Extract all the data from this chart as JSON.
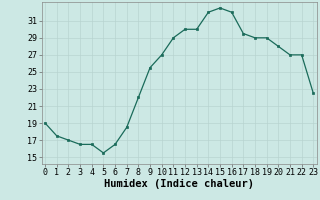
{
  "x": [
    0,
    1,
    2,
    3,
    4,
    5,
    6,
    7,
    8,
    9,
    10,
    11,
    12,
    13,
    14,
    15,
    16,
    17,
    18,
    19,
    20,
    21,
    22,
    23
  ],
  "y": [
    19.0,
    17.5,
    17.0,
    16.5,
    16.5,
    15.5,
    16.5,
    18.5,
    22.0,
    25.5,
    27.0,
    29.0,
    30.0,
    30.0,
    32.0,
    32.5,
    32.0,
    29.5,
    29.0,
    29.0,
    28.0,
    27.0,
    27.0,
    22.5
  ],
  "line_color": "#1a6b5a",
  "marker_color": "#1a6b5a",
  "bg_color": "#cce8e4",
  "grid_color": "#b8d4d0",
  "xlabel": "Humidex (Indice chaleur)",
  "yticks": [
    15,
    17,
    19,
    21,
    23,
    25,
    27,
    29,
    31
  ],
  "xticks": [
    0,
    1,
    2,
    3,
    4,
    5,
    6,
    7,
    8,
    9,
    10,
    11,
    12,
    13,
    14,
    15,
    16,
    17,
    18,
    19,
    20,
    21,
    22,
    23
  ],
  "xlim": [
    -0.3,
    23.3
  ],
  "ylim": [
    14.2,
    33.2
  ],
  "xlabel_fontsize": 7.5,
  "tick_fontsize": 6.0
}
